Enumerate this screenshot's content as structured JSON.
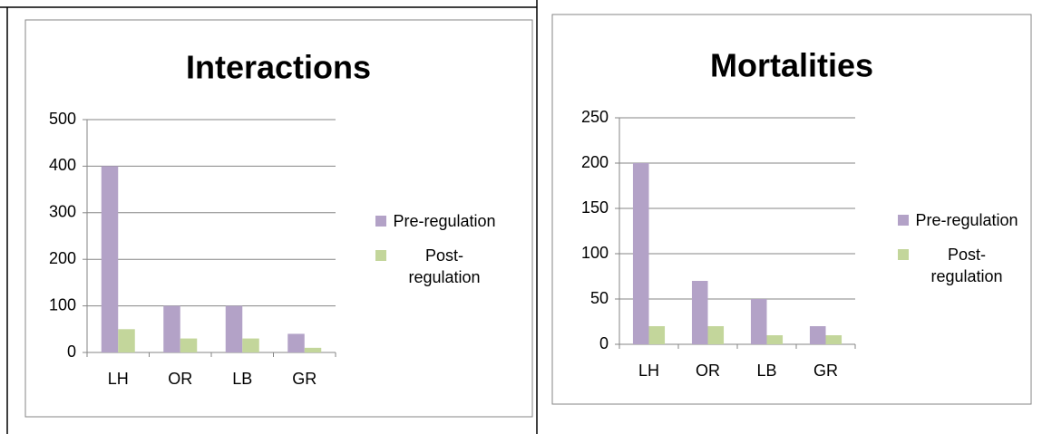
{
  "chart_data": [
    {
      "type": "bar",
      "title": "Interactions",
      "categories": [
        "LH",
        "OR",
        "LB",
        "GR"
      ],
      "series": [
        {
          "name": "Pre-regulation",
          "color": "#b3a2c7",
          "values": [
            400,
            100,
            100,
            40
          ]
        },
        {
          "name": "Post-regulation",
          "color": "#c3d69b",
          "values": [
            50,
            30,
            30,
            10
          ]
        }
      ],
      "ylim": [
        0,
        500
      ],
      "yticks": [
        0,
        100,
        200,
        300,
        400,
        500
      ],
      "grid": true,
      "legend": "right"
    },
    {
      "type": "bar",
      "title": "Mortalities",
      "categories": [
        "LH",
        "OR",
        "LB",
        "GR"
      ],
      "series": [
        {
          "name": "Pre-regulation",
          "color": "#b3a2c7",
          "values": [
            200,
            70,
            50,
            20
          ]
        },
        {
          "name": "Post-regulation",
          "color": "#c3d69b",
          "values": [
            20,
            20,
            10,
            10
          ]
        }
      ],
      "ylim": [
        0,
        250
      ],
      "yticks": [
        0,
        50,
        100,
        150,
        200,
        250
      ],
      "grid": true,
      "legend": "right"
    }
  ]
}
